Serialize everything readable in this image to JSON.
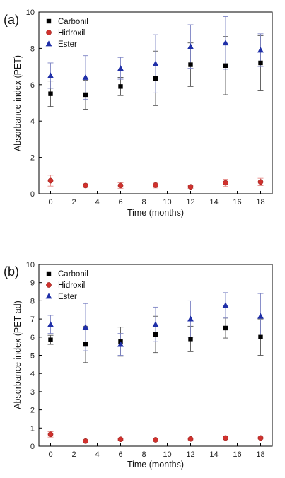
{
  "chart_data": [
    {
      "type": "scatter",
      "panel_label": "(a)",
      "xlabel": "Time (months)",
      "ylabel": "Absorbance index (PET)",
      "xlim": [
        -1,
        19
      ],
      "ylim": [
        0,
        10
      ],
      "xticks": [
        0,
        2,
        4,
        6,
        8,
        10,
        12,
        14,
        16,
        18
      ],
      "yticks": [
        0,
        2,
        4,
        6,
        8,
        10
      ],
      "legend_position": "top-left",
      "x": [
        0,
        3,
        6,
        9,
        12,
        15,
        18
      ],
      "series": [
        {
          "name": "Carbonil",
          "marker": "square",
          "color": "#000000",
          "values": [
            5.5,
            5.45,
            5.9,
            6.35,
            7.1,
            7.05,
            7.2
          ],
          "errors": [
            0.7,
            0.8,
            0.5,
            1.5,
            1.2,
            1.6,
            1.5
          ]
        },
        {
          "name": "Hidroxil",
          "marker": "circle",
          "color": "#d0312d",
          "values": [
            0.72,
            0.45,
            0.45,
            0.47,
            0.38,
            0.6,
            0.65
          ],
          "errors": [
            0.3,
            0.1,
            0.15,
            0.15,
            0.08,
            0.2,
            0.2
          ]
        },
        {
          "name": "Ester",
          "marker": "triangle",
          "color": "#1f2fa8",
          "values": [
            6.5,
            6.4,
            6.9,
            7.15,
            8.1,
            8.3,
            7.9
          ],
          "errors": [
            0.7,
            1.2,
            0.6,
            1.6,
            1.2,
            1.45,
            0.9
          ]
        }
      ]
    },
    {
      "type": "scatter",
      "panel_label": "(b)",
      "xlabel": "Time (months)",
      "ylabel": "Absorbance index (PET-ad)",
      "xlim": [
        -1,
        19
      ],
      "ylim": [
        0,
        10
      ],
      "xticks": [
        0,
        2,
        4,
        6,
        8,
        10,
        12,
        14,
        16,
        18
      ],
      "yticks": [
        0,
        1,
        2,
        3,
        4,
        5,
        6,
        7,
        8,
        9,
        10
      ],
      "legend_position": "top-left",
      "x": [
        0,
        3,
        6,
        9,
        12,
        15,
        18
      ],
      "series": [
        {
          "name": "Carbonil",
          "marker": "square",
          "color": "#000000",
          "values": [
            5.85,
            5.6,
            5.75,
            6.15,
            5.9,
            6.5,
            6.0
          ],
          "errors": [
            0.25,
            1.0,
            0.8,
            1.0,
            0.7,
            0.55,
            1.0
          ]
        },
        {
          "name": "Hidroxil",
          "marker": "circle",
          "color": "#d0312d",
          "values": [
            0.65,
            0.28,
            0.38,
            0.35,
            0.4,
            0.45,
            0.45
          ],
          "errors": [
            0.15,
            0.05,
            0.05,
            0.05,
            0.05,
            0.05,
            0.05
          ]
        },
        {
          "name": "Ester",
          "marker": "triangle",
          "color": "#1f2fa8",
          "values": [
            6.7,
            6.55,
            5.6,
            6.7,
            7.0,
            7.75,
            7.15
          ],
          "errors": [
            0.5,
            1.3,
            0.6,
            0.95,
            1.0,
            0.7,
            1.25
          ]
        }
      ]
    }
  ]
}
